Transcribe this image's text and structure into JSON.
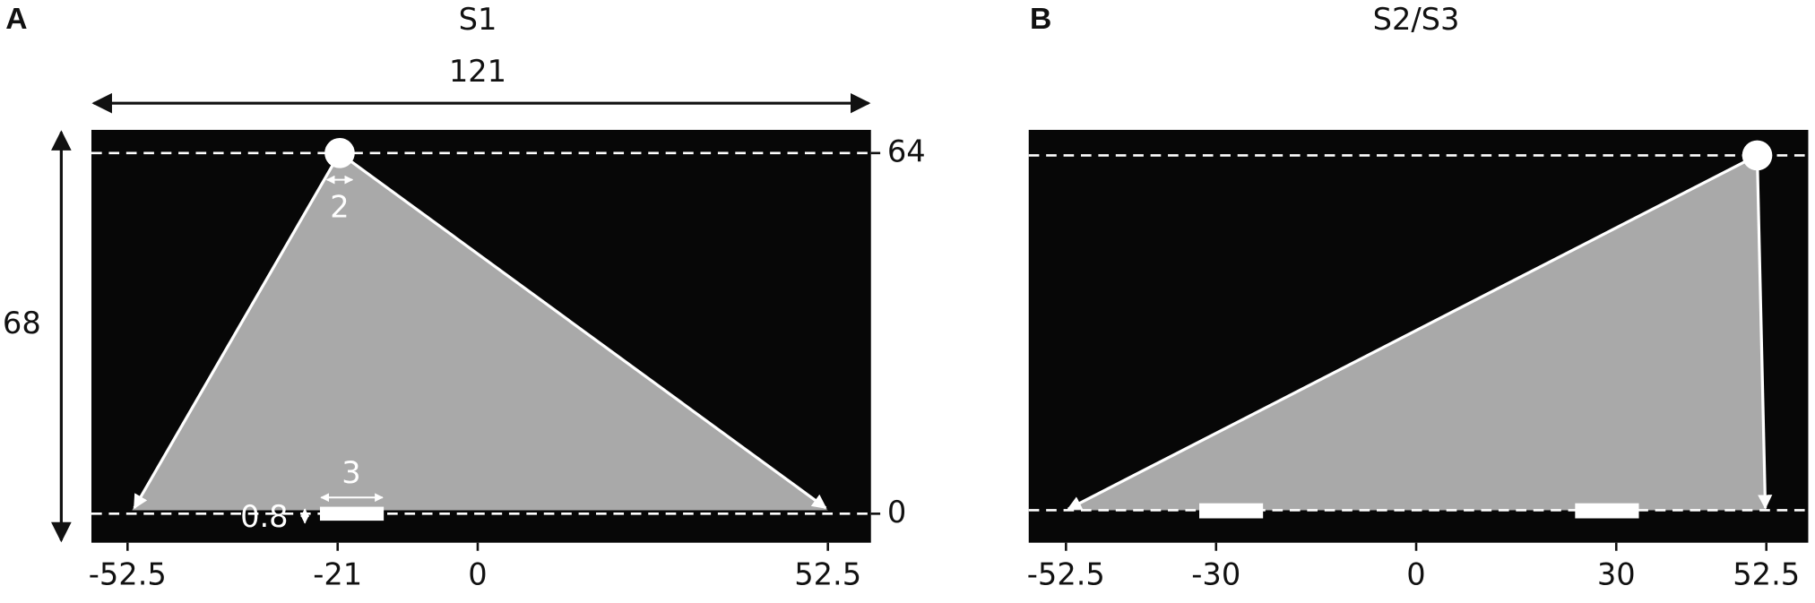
{
  "panels": [
    {
      "label": "A",
      "title": "S1",
      "xticks": [
        -52.5,
        -21,
        0,
        52.5
      ],
      "yticks": [
        64,
        0
      ],
      "field_width": 121,
      "field_height": 68,
      "ball_width": 2,
      "goal_width": 3,
      "goal_height": 0.8
    },
    {
      "label": "B",
      "title": "S2/S3",
      "xticks": [
        -52.5,
        -30,
        0,
        30,
        52.5
      ]
    }
  ]
}
